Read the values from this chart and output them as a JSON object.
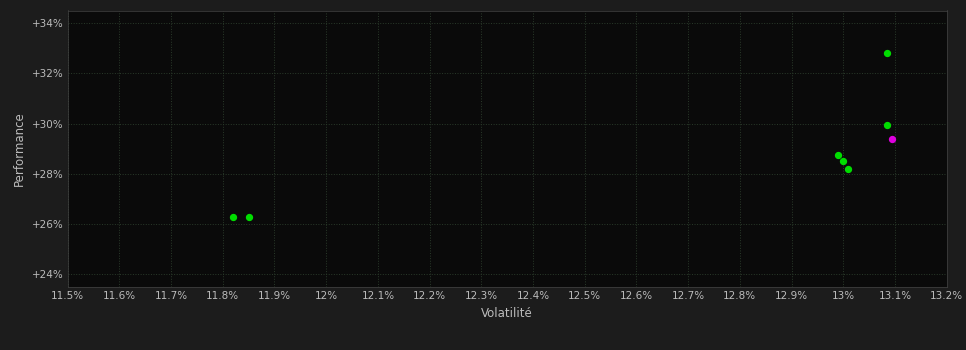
{
  "background_color": "#1c1c1c",
  "plot_bg_color": "#0a0a0a",
  "grid_color": "#2a3a2a",
  "text_color": "#bbbbbb",
  "xlabel": "Volatilité",
  "ylabel": "Performance",
  "xlim": [
    0.115,
    0.132
  ],
  "ylim": [
    0.235,
    0.345
  ],
  "xtick_values": [
    0.115,
    0.116,
    0.117,
    0.118,
    0.119,
    0.12,
    0.121,
    0.122,
    0.123,
    0.124,
    0.125,
    0.126,
    0.127,
    0.128,
    0.129,
    0.13,
    0.131,
    0.132
  ],
  "ytick_values": [
    0.24,
    0.26,
    0.28,
    0.3,
    0.32,
    0.34
  ],
  "points_green": [
    [
      0.1182,
      0.263
    ],
    [
      0.1185,
      0.263
    ],
    [
      0.1299,
      0.2875
    ],
    [
      0.13,
      0.285
    ],
    [
      0.1301,
      0.282
    ],
    [
      0.13085,
      0.2995
    ],
    [
      0.13085,
      0.328
    ]
  ],
  "points_magenta": [
    [
      0.13095,
      0.294
    ]
  ],
  "point_size": 18,
  "dot_color_green": "#00dd00",
  "dot_color_magenta": "#dd00dd",
  "tick_fontsize": 7.5,
  "label_fontsize": 8.5,
  "ylabel_fontsize": 8.5
}
